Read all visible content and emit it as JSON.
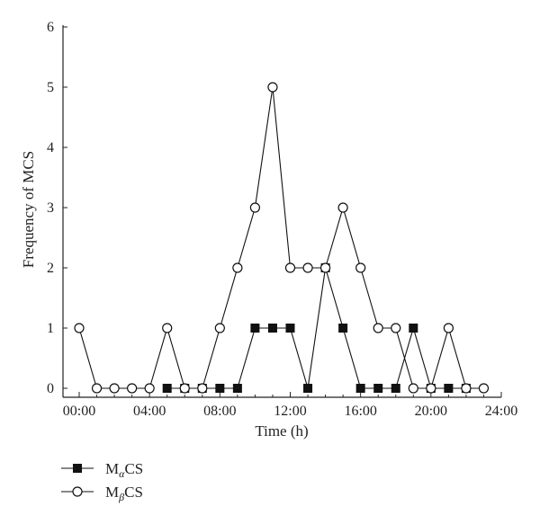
{
  "chart_data": {
    "type": "line",
    "title": "",
    "xlabel": "Time (h)",
    "ylabel": "Frequency of MCS",
    "x_ticks": [
      "00:00",
      "04:00",
      "08:00",
      "12:00",
      "16:00",
      "20:00",
      "24:00"
    ],
    "y_ticks": [
      "0",
      "1",
      "2",
      "3",
      "4",
      "5",
      "6"
    ],
    "xlim": [
      0,
      24
    ],
    "ylim": [
      0,
      6
    ],
    "grid": false,
    "legend_position": "bottom-left",
    "series": [
      {
        "name": "MαCS",
        "name_main": "M",
        "name_sub": "α",
        "name_tail": "CS",
        "marker": "filled-square",
        "color": "#111111",
        "x": [
          5,
          6,
          7,
          8,
          9,
          10,
          11,
          12,
          13,
          14,
          15,
          16,
          17,
          18,
          19,
          20,
          21,
          22
        ],
        "y": [
          0,
          0,
          0,
          0,
          0,
          1,
          1,
          1,
          0,
          2,
          1,
          0,
          0,
          0,
          1,
          0,
          0,
          0
        ]
      },
      {
        "name": "MβCS",
        "name_main": "M",
        "name_sub": "β",
        "name_tail": "CS",
        "marker": "open-circle",
        "color": "#111111",
        "x": [
          0,
          1,
          2,
          3,
          4,
          5,
          6,
          7,
          8,
          9,
          10,
          11,
          12,
          13,
          14,
          15,
          16,
          17,
          18,
          19,
          20,
          21,
          22,
          23
        ],
        "y": [
          1,
          0,
          0,
          0,
          0,
          1,
          0,
          0,
          1,
          2,
          3,
          5,
          2,
          2,
          2,
          3,
          2,
          1,
          1,
          0,
          0,
          1,
          0,
          0
        ]
      }
    ]
  }
}
